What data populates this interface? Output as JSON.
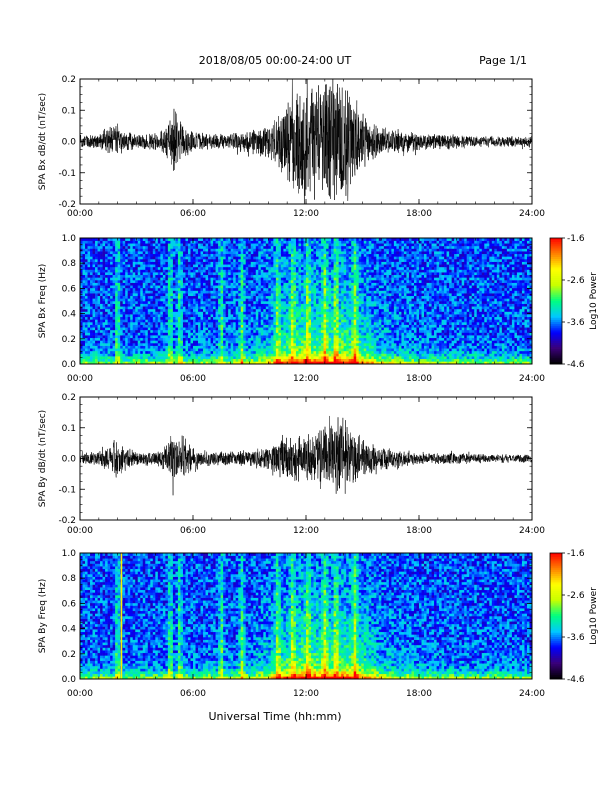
{
  "header": {
    "title": "2018/08/05  00:00-24:00 UT",
    "page": "Page 1/1"
  },
  "xaxis": {
    "label": "Universal Time (hh:mm)",
    "ticks": [
      "00:00",
      "06:00",
      "12:00",
      "18:00",
      "24:00"
    ],
    "range_hours": [
      0,
      24
    ]
  },
  "colorbar": {
    "label": "Log10 Power",
    "ticks": [
      "-1.6",
      "-2.6",
      "-3.6",
      "-4.6"
    ],
    "range": [
      -4.6,
      -1.6
    ],
    "colormap": [
      "#000000",
      "#3a007a",
      "#0000ff",
      "#00c8ff",
      "#00ff7f",
      "#c8ff00",
      "#ffff00",
      "#ff8000",
      "#ff0000"
    ]
  },
  "chart_data": [
    {
      "type": "line",
      "ylabel": "SPA Bx dB/dt (nT/sec)",
      "ylim": [
        -0.2,
        0.2
      ],
      "yticks": [
        "0.2",
        "0.1",
        "0.0",
        "-0.1",
        "-0.2"
      ],
      "xlim": [
        0,
        24
      ],
      "envelope_hours": [
        0,
        1,
        2,
        2.2,
        3,
        4,
        4.5,
        5,
        5.5,
        6,
        7,
        8,
        9,
        10,
        10.5,
        11,
        11.5,
        12,
        12.5,
        13,
        13.5,
        14,
        14.5,
        15,
        15.5,
        16,
        17,
        18,
        19,
        20,
        21,
        22,
        23,
        24
      ],
      "envelope_amplitude": [
        0.025,
        0.03,
        0.06,
        0.04,
        0.025,
        0.03,
        0.05,
        0.11,
        0.06,
        0.04,
        0.025,
        0.03,
        0.04,
        0.06,
        0.09,
        0.16,
        0.2,
        0.24,
        0.2,
        0.22,
        0.24,
        0.22,
        0.18,
        0.1,
        0.07,
        0.05,
        0.04,
        0.03,
        0.025,
        0.025,
        0.02,
        0.02,
        0.02,
        0.02
      ]
    },
    {
      "type": "heatmap",
      "ylabel": "SPA Bx Freq (Hz)",
      "ylim": [
        0,
        1.0
      ],
      "yticks": [
        "1.0",
        "0.8",
        "0.6",
        "0.4",
        "0.2",
        "0.0"
      ],
      "xlim": [
        0,
        24
      ],
      "value_range": [
        -4.6,
        -1.6
      ],
      "bright_stripes_hours": [
        2.0,
        4.8,
        5.3,
        7.5,
        8.6,
        10.5,
        11.3,
        12.1,
        13.0,
        13.6,
        14.6
      ],
      "vertical_line_hours": []
    },
    {
      "type": "line",
      "ylabel": "SPA By dB/dt (nT/sec)",
      "ylim": [
        -0.2,
        0.2
      ],
      "yticks": [
        "0.2",
        "0.1",
        "0.0",
        "-0.1",
        "-0.2"
      ],
      "xlim": [
        0,
        24
      ],
      "envelope_hours": [
        0,
        1,
        2,
        2.2,
        3,
        4,
        4.5,
        5,
        5.5,
        6,
        7,
        8,
        9,
        10,
        10.5,
        11,
        11.5,
        12,
        12.5,
        13,
        13.5,
        14,
        14.5,
        15,
        15.5,
        16,
        17,
        18,
        19,
        20,
        21,
        22,
        23,
        24
      ],
      "envelope_amplitude": [
        0.02,
        0.025,
        0.07,
        0.05,
        0.025,
        0.025,
        0.04,
        0.09,
        0.08,
        0.04,
        0.025,
        0.025,
        0.03,
        0.04,
        0.06,
        0.08,
        0.09,
        0.08,
        0.1,
        0.12,
        0.14,
        0.15,
        0.1,
        0.07,
        0.05,
        0.04,
        0.03,
        0.02,
        0.02,
        0.02,
        0.015,
        0.015,
        0.015,
        0.015
      ]
    },
    {
      "type": "heatmap",
      "ylabel": "SPA By Freq (Hz)",
      "ylim": [
        0,
        1.0
      ],
      "yticks": [
        "1.0",
        "0.8",
        "0.6",
        "0.4",
        "0.2",
        "0.0"
      ],
      "xlim": [
        0,
        24
      ],
      "value_range": [
        -4.6,
        -1.6
      ],
      "bright_stripes_hours": [
        2.0,
        4.8,
        5.3,
        7.5,
        8.6,
        10.5,
        11.3,
        12.1,
        13.0,
        13.6,
        14.6
      ],
      "vertical_line_hours": [
        2.2
      ]
    }
  ]
}
